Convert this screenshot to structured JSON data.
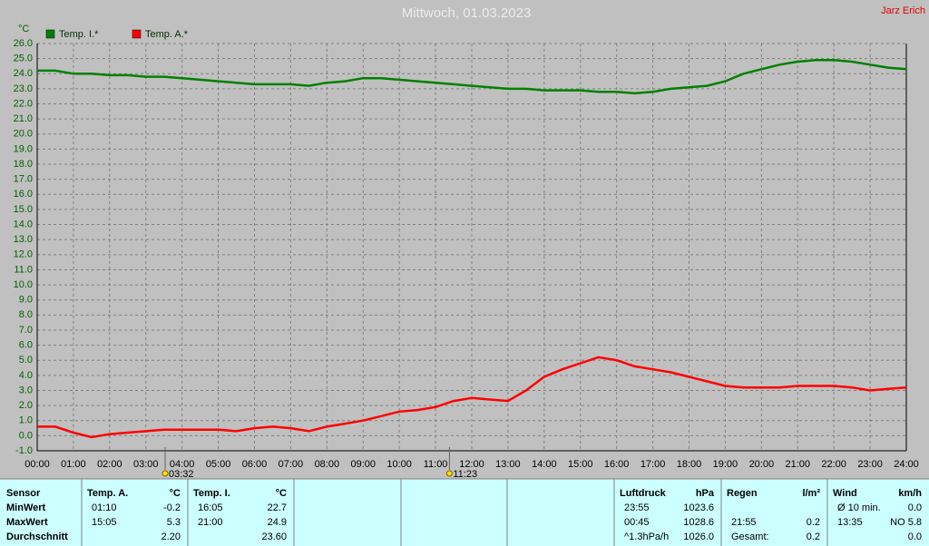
{
  "chart_data": {
    "type": "line",
    "title": "Mittwoch, 01.03.2023",
    "author": "Jarz Erich",
    "y_label": "°C",
    "x": [
      0,
      0.5,
      1,
      1.5,
      2,
      2.5,
      3,
      3.5,
      4,
      4.5,
      5,
      5.5,
      6,
      6.5,
      7,
      7.5,
      8,
      8.5,
      9,
      9.5,
      10,
      10.5,
      11,
      11.5,
      12,
      12.5,
      13,
      13.5,
      14,
      14.5,
      15,
      15.5,
      16,
      16.5,
      17,
      17.5,
      18,
      18.5,
      19,
      19.5,
      20,
      20.5,
      21,
      21.5,
      22,
      22.5,
      23,
      23.5,
      24
    ],
    "series": [
      {
        "name": "Temp. I.*",
        "color": "#008000",
        "values": [
          24.2,
          24.2,
          24.0,
          24.0,
          23.9,
          23.9,
          23.8,
          23.8,
          23.7,
          23.6,
          23.5,
          23.4,
          23.3,
          23.3,
          23.3,
          23.2,
          23.4,
          23.5,
          23.7,
          23.7,
          23.6,
          23.5,
          23.4,
          23.3,
          23.2,
          23.1,
          23.0,
          23.0,
          22.9,
          22.9,
          22.9,
          22.8,
          22.8,
          22.7,
          22.8,
          23.0,
          23.1,
          23.2,
          23.5,
          24.0,
          24.3,
          24.6,
          24.8,
          24.9,
          24.9,
          24.8,
          24.6,
          24.4,
          24.3
        ]
      },
      {
        "name": "Temp. A.*",
        "color": "#ff0000",
        "values": [
          0.6,
          0.6,
          0.2,
          -0.1,
          0.1,
          0.2,
          0.3,
          0.4,
          0.4,
          0.4,
          0.4,
          0.3,
          0.5,
          0.6,
          0.5,
          0.3,
          0.6,
          0.8,
          1.0,
          1.3,
          1.6,
          1.7,
          1.9,
          2.3,
          2.5,
          2.4,
          2.3,
          3.0,
          3.9,
          4.4,
          4.8,
          5.2,
          5.0,
          4.6,
          4.4,
          4.2,
          3.9,
          3.6,
          3.3,
          3.2,
          3.2,
          3.2,
          3.3,
          3.3,
          3.3,
          3.2,
          3.0,
          3.1,
          3.2
        ]
      }
    ],
    "xlim": [
      0,
      24
    ],
    "xticks": [
      {
        "value": 0,
        "label": "00:00"
      },
      {
        "value": 1,
        "label": "01:00"
      },
      {
        "value": 2,
        "label": "02:00"
      },
      {
        "value": 3,
        "label": "03:00"
      },
      {
        "value": 4,
        "label": "04:00"
      },
      {
        "value": 5,
        "label": "05:00"
      },
      {
        "value": 6,
        "label": "06:00"
      },
      {
        "value": 7,
        "label": "07:00"
      },
      {
        "value": 8,
        "label": "08:00"
      },
      {
        "value": 9,
        "label": "09:00"
      },
      {
        "value": 10,
        "label": "10:00"
      },
      {
        "value": 11,
        "label": "11:00"
      },
      {
        "value": 12,
        "label": "12:00"
      },
      {
        "value": 13,
        "label": "13:00"
      },
      {
        "value": 14,
        "label": "14:00"
      },
      {
        "value": 15,
        "label": "15:00"
      },
      {
        "value": 16,
        "label": "16:00"
      },
      {
        "value": 17,
        "label": "17:00"
      },
      {
        "value": 18,
        "label": "18:00"
      },
      {
        "value": 19,
        "label": "19:00"
      },
      {
        "value": 20,
        "label": "20:00"
      },
      {
        "value": 21,
        "label": "21:00"
      },
      {
        "value": 22,
        "label": "22:00"
      },
      {
        "value": 23,
        "label": "23:00"
      },
      {
        "value": 24,
        "label": "24:00"
      }
    ],
    "ylim": [
      -1,
      26
    ],
    "yticks": [
      {
        "value": -1,
        "label": "-1.0"
      },
      {
        "value": 0,
        "label": "0.0"
      },
      {
        "value": 1,
        "label": "1.0"
      },
      {
        "value": 2,
        "label": "2.0"
      },
      {
        "value": 3,
        "label": "3.0"
      },
      {
        "value": 4,
        "label": "4.0"
      },
      {
        "value": 5,
        "label": "5.0"
      },
      {
        "value": 6,
        "label": "6.0"
      },
      {
        "value": 7,
        "label": "7.0"
      },
      {
        "value": 8,
        "label": "8.0"
      },
      {
        "value": 9,
        "label": "9.0"
      },
      {
        "value": 10,
        "label": "10.0"
      },
      {
        "value": 11,
        "label": "11.0"
      },
      {
        "value": 12,
        "label": "12.0"
      },
      {
        "value": 13,
        "label": "13.0"
      },
      {
        "value": 14,
        "label": "14.0"
      },
      {
        "value": 15,
        "label": "15.0"
      },
      {
        "value": 16,
        "label": "16.0"
      },
      {
        "value": 17,
        "label": "17.0"
      },
      {
        "value": 18,
        "label": "18.0"
      },
      {
        "value": 19,
        "label": "19.0"
      },
      {
        "value": 20,
        "label": "20.0"
      },
      {
        "value": 21,
        "label": "21.0"
      },
      {
        "value": 22,
        "label": "22.0"
      },
      {
        "value": 23,
        "label": "23.0"
      },
      {
        "value": 24,
        "label": "24.0"
      },
      {
        "value": 25,
        "label": "25.0"
      },
      {
        "value": 26,
        "label": "26.0"
      }
    ],
    "grid": true,
    "annotations": [
      {
        "x": 3.533,
        "label": "03:32"
      },
      {
        "x": 11.383,
        "label": "11:23"
      }
    ]
  },
  "table": {
    "sensor": [
      "Sensor",
      "MinWert",
      "MaxWert",
      "Durchschnitt"
    ],
    "groups": [
      {
        "title": "Temp. A.",
        "unit": "°C",
        "rows": [
          [
            "01:10",
            "-0.2"
          ],
          [
            "15:05",
            "5.3"
          ],
          [
            null,
            "2.20"
          ]
        ]
      },
      {
        "title": "Temp. I.",
        "unit": "°C",
        "rows": [
          [
            "16:05",
            "22.7"
          ],
          [
            "21:00",
            "24.9"
          ],
          [
            null,
            "23.60"
          ]
        ]
      },
      {
        "title": "Luftdruck",
        "unit": "hPa",
        "rows": [
          [
            "23:55",
            "1023.6"
          ],
          [
            "00:45",
            "1028.6"
          ],
          [
            "^1.3hPa/h",
            "1026.0"
          ]
        ]
      },
      {
        "title": "Regen",
        "unit": "l/m²",
        "rows": [
          [
            null,
            null
          ],
          [
            "21:55",
            "0.2"
          ],
          [
            "Gesamt:",
            "0.2"
          ]
        ]
      },
      {
        "title": "Wind",
        "unit": "km/h",
        "rows": [
          [
            "Ø 10 min.",
            "0.0"
          ],
          [
            "13:35",
            "NO 5.8"
          ],
          [
            null,
            "0.0"
          ]
        ]
      }
    ]
  }
}
